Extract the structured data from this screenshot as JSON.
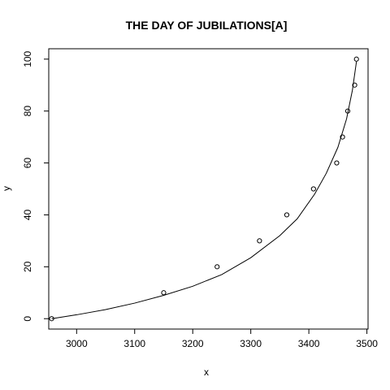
{
  "chart_data": {
    "type": "scatter",
    "title": "THE DAY OF JUBILATIONS[A]",
    "xlabel": "x",
    "ylabel": "y",
    "xlim": [
      2952,
      3502
    ],
    "ylim": [
      -4,
      104
    ],
    "xticks": [
      3000,
      3100,
      3200,
      3300,
      3400,
      3500
    ],
    "yticks": [
      0,
      20,
      40,
      60,
      80,
      100
    ],
    "grid": false,
    "legend": "none",
    "series": [
      {
        "kind": "points",
        "x": [
          2957,
          3150,
          3242,
          3315,
          3362,
          3408,
          3448,
          3458,
          3467,
          3479,
          3482
        ],
        "y": [
          0,
          10,
          20,
          30,
          40,
          50,
          60,
          70,
          80,
          90,
          100
        ]
      },
      {
        "kind": "fitted-curve",
        "x": [
          2957,
          3000,
          3050,
          3100,
          3150,
          3200,
          3250,
          3300,
          3350,
          3380,
          3410,
          3430,
          3450,
          3465,
          3475,
          3482
        ],
        "y": [
          0,
          1.5,
          3.5,
          6,
          9,
          12.5,
          17,
          23.5,
          32,
          38.5,
          48,
          56,
          66,
          77,
          88,
          99
        ]
      }
    ]
  }
}
